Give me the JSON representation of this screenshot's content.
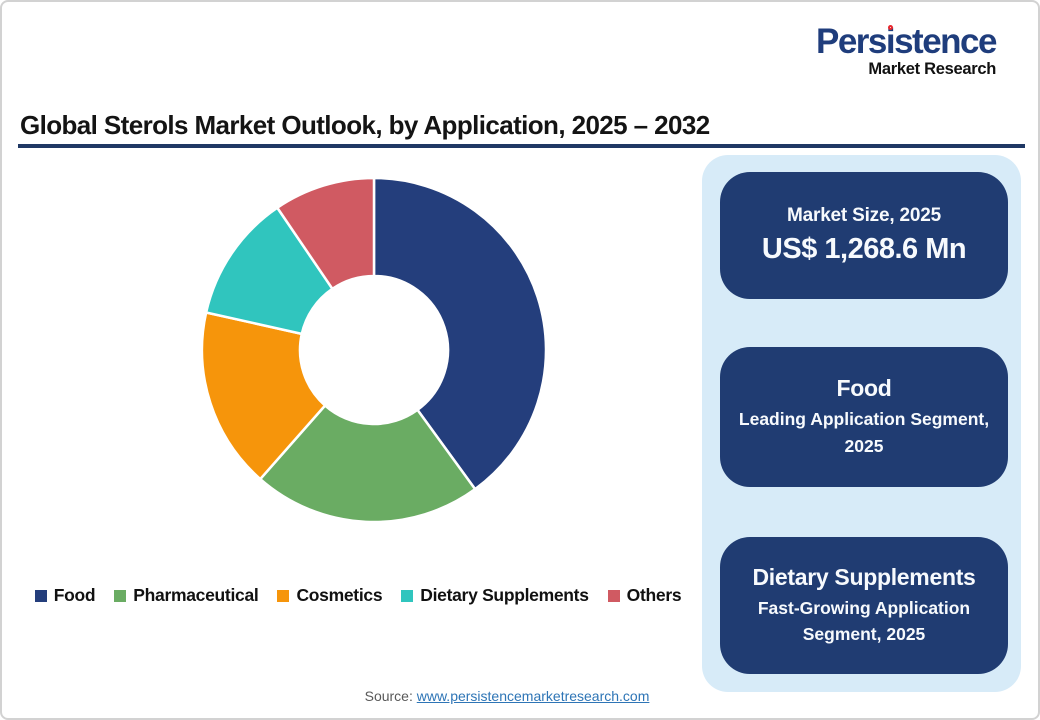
{
  "brand": {
    "name": "Persistence",
    "tagline": "Market Research",
    "accent_color": "#1F3D7C",
    "dot_color": "#E8292F"
  },
  "title": "Global Sterols Market Outlook, by Application, 2025 – 2032",
  "chart_data": {
    "type": "pie",
    "subtype": "donut",
    "title": "Global Sterols Market Outlook, by Application, 2025 – 2032",
    "categories": [
      "Food",
      "Pharmaceutical",
      "Cosmetics",
      "Dietary Supplements",
      "Others"
    ],
    "values_pct_estimated": [
      40,
      21.5,
      17,
      12,
      9.5
    ],
    "colors": [
      "#243E7C",
      "#6AAC63",
      "#F6950B",
      "#30C5BE",
      "#D05A62"
    ],
    "start_angle_deg": 0,
    "direction": "clockwise",
    "inner_radius_ratio": 0.43,
    "legend_position": "bottom",
    "data_labels": false
  },
  "info_cards": [
    {
      "title": "Market Size, 2025",
      "subtitle": "US$ 1,268.6 Mn"
    },
    {
      "title": "Food",
      "subtitle": "Leading Application Segment, 2025"
    },
    {
      "title": "Dietary Supplements",
      "subtitle": "Fast-Growing Application Segment, 2025"
    }
  ],
  "source": {
    "label": "Source:",
    "link_text": "www.persistencemarketresearch.com"
  },
  "theme": {
    "panel_bg": "#D7EBF8",
    "card_bg": "#203C72",
    "title_rule": "#1F3864",
    "link_color": "#2E75B6"
  }
}
